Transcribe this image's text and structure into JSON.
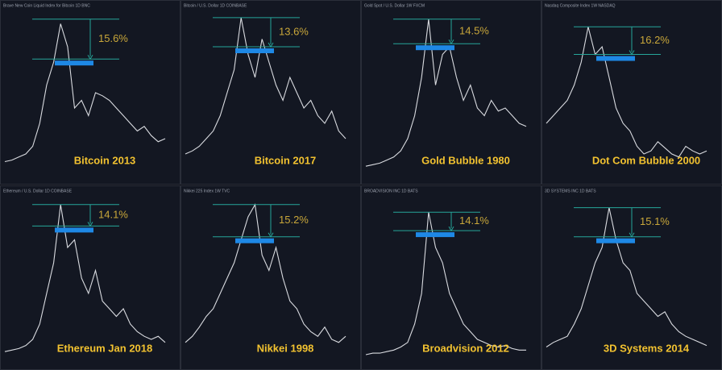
{
  "panels": [
    {
      "header": "Brave New Coin Liquid Index for Bitcoin 1D BNC",
      "title": "Bitcoin 2013",
      "change": "15.6%",
      "ylim": [
        0,
        100
      ],
      "levels": [
        98,
        72
      ],
      "values": [
        5,
        6,
        8,
        10,
        15,
        30,
        55,
        70,
        95,
        80,
        40,
        45,
        35,
        50,
        48,
        45,
        40,
        35,
        30,
        25,
        28,
        22,
        18,
        20
      ]
    },
    {
      "header": "Bitcoin / U.S. Dollar 1D COINBASE",
      "title": "Bitcoin 2017",
      "change": "13.6%",
      "ylim": [
        0,
        100
      ],
      "levels": [
        99,
        80
      ],
      "values": [
        10,
        12,
        15,
        20,
        25,
        35,
        50,
        65,
        99,
        75,
        60,
        85,
        70,
        55,
        45,
        60,
        50,
        40,
        45,
        35,
        30,
        38,
        25,
        20
      ]
    },
    {
      "header": "Gold Spot / U.S. Dollar 1W FXCM",
      "title": "Gold Bubble 1980",
      "change": "14.5%",
      "ylim": [
        0,
        100
      ],
      "levels": [
        98,
        82
      ],
      "values": [
        2,
        3,
        4,
        6,
        8,
        12,
        20,
        35,
        60,
        98,
        55,
        75,
        80,
        60,
        45,
        55,
        40,
        35,
        45,
        38,
        40,
        35,
        30,
        28
      ]
    },
    {
      "header": "Nasdaq Composite Index 1W NASDAQ",
      "title": "Dot Com Bubble 2000",
      "change": "16.2%",
      "ylim": [
        0,
        100
      ],
      "levels": [
        93,
        75
      ],
      "values": [
        30,
        35,
        40,
        45,
        55,
        70,
        93,
        75,
        80,
        60,
        40,
        30,
        25,
        15,
        10,
        12,
        18,
        14,
        10,
        8,
        15,
        12,
        10,
        12
      ]
    },
    {
      "header": "Ethereum / U.S. Dollar 1D COINBASE",
      "title": "Ethereum Jan 2018",
      "change": "14.1%",
      "ylim": [
        0,
        100
      ],
      "levels": [
        98,
        84
      ],
      "values": [
        2,
        3,
        4,
        6,
        10,
        20,
        40,
        60,
        98,
        70,
        75,
        50,
        40,
        55,
        35,
        30,
        25,
        30,
        20,
        15,
        12,
        10,
        12,
        8
      ]
    },
    {
      "header": "Nikkei 225 Index 1W TVC",
      "title": "Nikkei 1998",
      "change": "15.2%",
      "ylim": [
        0,
        100
      ],
      "levels": [
        98,
        77
      ],
      "values": [
        8,
        12,
        18,
        25,
        30,
        40,
        50,
        60,
        75,
        90,
        98,
        65,
        55,
        70,
        50,
        35,
        30,
        20,
        15,
        12,
        18,
        10,
        8,
        12
      ]
    },
    {
      "header": "BROADVISION INC 1D BATS",
      "title": "Broadvision 2012",
      "change": "14.1%",
      "ylim": [
        0,
        100
      ],
      "levels": [
        93,
        81
      ],
      "values": [
        0,
        1,
        1,
        2,
        3,
        5,
        8,
        20,
        40,
        93,
        70,
        60,
        40,
        30,
        20,
        15,
        10,
        8,
        6,
        5,
        6,
        4,
        3,
        3
      ]
    },
    {
      "header": "3D SYSTEMS INC 1D BATS",
      "title": "3D Systems 2014",
      "change": "15.1%",
      "ylim": [
        0,
        100
      ],
      "levels": [
        96,
        77
      ],
      "values": [
        5,
        8,
        10,
        12,
        20,
        30,
        45,
        60,
        70,
        96,
        75,
        60,
        55,
        40,
        35,
        30,
        25,
        28,
        20,
        15,
        12,
        10,
        8,
        6
      ]
    }
  ]
}
